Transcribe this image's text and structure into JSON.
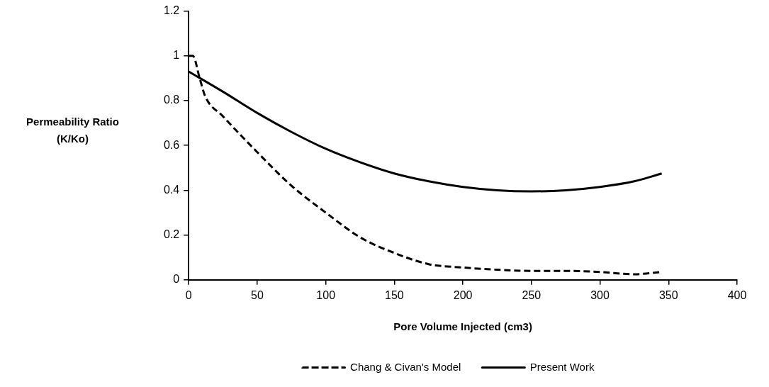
{
  "chart_data": {
    "type": "line",
    "xlabel": "Pore Volume Injected (cm3)",
    "ylabel": "Permeability Ratio (K/Ko)",
    "xlim": [
      0,
      400
    ],
    "xticks": [
      0,
      50,
      100,
      150,
      200,
      250,
      300,
      350,
      400
    ],
    "ylim": [
      0,
      1.2
    ],
    "yticks": [
      0,
      0.2,
      0.4,
      0.6,
      0.8,
      1,
      1.2
    ],
    "grid": false,
    "legend": "bottom",
    "marker": "none",
    "series": [
      {
        "name": "Chang & Civan's Model",
        "color": "#000000",
        "line_style": "dashed",
        "x": [
          0,
          3,
          8,
          12,
          25,
          50,
          75,
          100,
          125,
          150,
          175,
          200,
          225,
          250,
          275,
          300,
          325,
          345
        ],
        "values": [
          1.0,
          1.0,
          0.9,
          0.82,
          0.73,
          0.57,
          0.42,
          0.3,
          0.19,
          0.12,
          0.07,
          0.055,
          0.045,
          0.04,
          0.04,
          0.035,
          0.025,
          0.035
        ]
      },
      {
        "name": "Present Work",
        "color": "#000000",
        "line_style": "solid",
        "x": [
          0,
          25,
          50,
          75,
          100,
          125,
          150,
          175,
          200,
          225,
          250,
          275,
          300,
          325,
          345
        ],
        "values": [
          0.93,
          0.84,
          0.745,
          0.66,
          0.585,
          0.525,
          0.475,
          0.44,
          0.415,
          0.4,
          0.395,
          0.4,
          0.415,
          0.44,
          0.475
        ]
      }
    ]
  }
}
